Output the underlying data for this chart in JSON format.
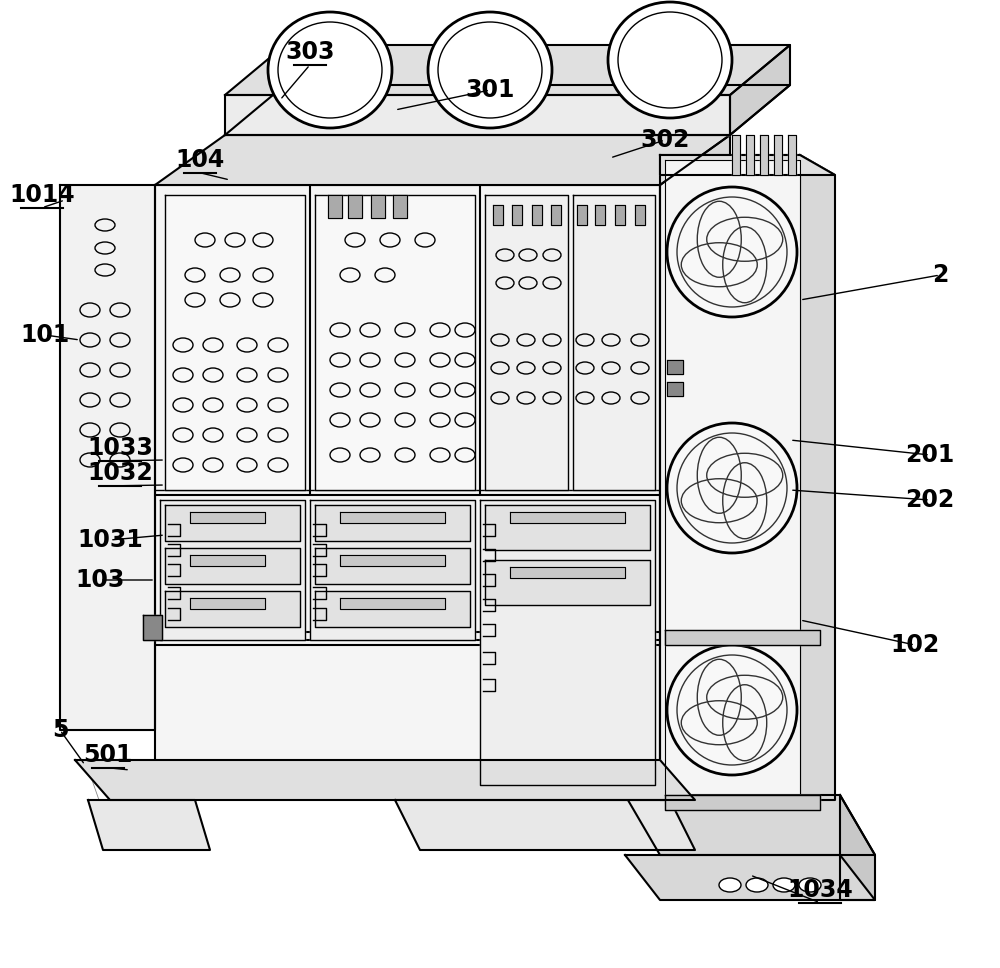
{
  "background_color": "#ffffff",
  "line_color": "#000000",
  "label_color": "#000000",
  "labels_info": [
    [
      "303",
      310,
      52,
      280,
      100,
      true
    ],
    [
      "301",
      490,
      90,
      395,
      110,
      false
    ],
    [
      "302",
      665,
      140,
      610,
      158,
      false
    ],
    [
      "104",
      200,
      160,
      230,
      180,
      true
    ],
    [
      "1014",
      42,
      195,
      65,
      200,
      true
    ],
    [
      "2",
      940,
      275,
      800,
      300,
      false
    ],
    [
      "101",
      45,
      335,
      80,
      340,
      false
    ],
    [
      "201",
      930,
      455,
      790,
      440,
      false
    ],
    [
      "202",
      930,
      500,
      790,
      490,
      false
    ],
    [
      "1033",
      120,
      448,
      165,
      460,
      true
    ],
    [
      "1032",
      120,
      473,
      165,
      485,
      true
    ],
    [
      "1031",
      110,
      540,
      165,
      535,
      false
    ],
    [
      "103",
      100,
      580,
      155,
      580,
      false
    ],
    [
      "102",
      915,
      645,
      800,
      620,
      false
    ],
    [
      "5",
      60,
      730,
      85,
      765,
      false
    ],
    [
      "501",
      108,
      755,
      130,
      770,
      true
    ],
    [
      "1034",
      820,
      890,
      750,
      875,
      true
    ]
  ],
  "figsize": [
    10.0,
    9.68
  ],
  "dpi": 100
}
